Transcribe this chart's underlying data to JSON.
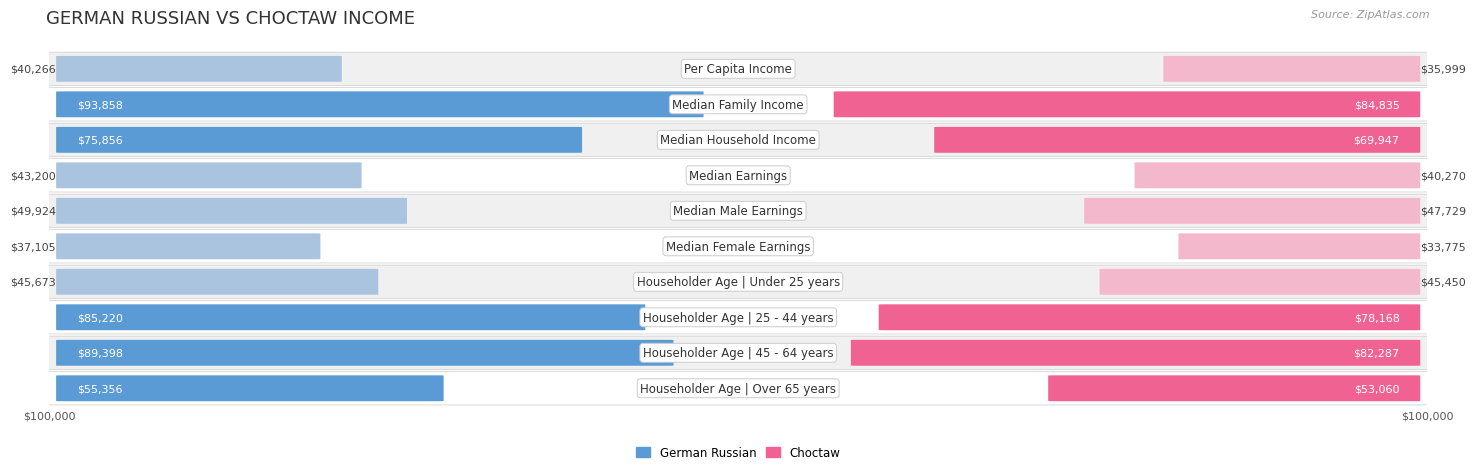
{
  "title": "GERMAN RUSSIAN VS CHOCTAW INCOME",
  "source": "Source: ZipAtlas.com",
  "categories": [
    "Per Capita Income",
    "Median Family Income",
    "Median Household Income",
    "Median Earnings",
    "Median Male Earnings",
    "Median Female Earnings",
    "Householder Age | Under 25 years",
    "Householder Age | 25 - 44 years",
    "Householder Age | 45 - 64 years",
    "Householder Age | Over 65 years"
  ],
  "german_russian": [
    40266,
    93858,
    75856,
    43200,
    49924,
    37105,
    45673,
    85220,
    89398,
    55356
  ],
  "choctaw": [
    35999,
    84835,
    69947,
    40270,
    47729,
    33775,
    45450,
    78168,
    82287,
    53060
  ],
  "max_val": 100000,
  "blue_light": "#aac4e0",
  "blue_dark": "#5b9bd5",
  "pink_light": "#f4b8cc",
  "pink_dark": "#f06292",
  "blue_label": "German Russian",
  "pink_label": "Choctaw",
  "bg_color": "#ffffff",
  "row_bg_light": "#f0f0f0",
  "row_bg_white": "#ffffff",
  "title_fontsize": 13,
  "cat_fontsize": 8.5,
  "value_fontsize": 8,
  "source_fontsize": 8,
  "threshold": 0.5
}
